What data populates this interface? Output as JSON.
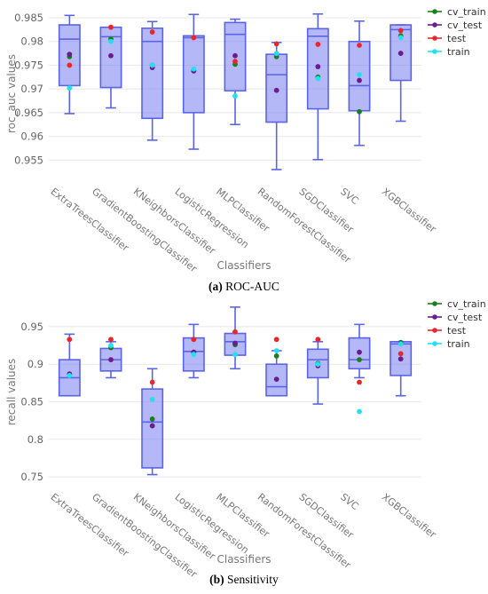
{
  "chart_data": [
    {
      "type": "box",
      "caption_label": "(a)",
      "caption_text": "ROC-AUC",
      "xlabel": "Classifiers",
      "ylabel": "roc_auc values",
      "ylim": [
        0.9515,
        0.9865
      ],
      "yticks": [
        0.955,
        0.96,
        0.965,
        0.97,
        0.975,
        0.98,
        0.985
      ],
      "ytick_labels": [
        "0.955",
        "0.96",
        "0.965",
        "0.97",
        "0.975",
        "0.98",
        "0.985"
      ],
      "grid": true,
      "legend_position": "top-right",
      "categories": [
        "ExtraTreesClassifier",
        "GradientBoostingClassifier",
        "KNeighborsClassifier",
        "LogisticRegression",
        "MLPClassifier",
        "RandomForestClassifier",
        "SGDClassifier",
        "SVC",
        "XGBClassifier"
      ],
      "boxes": [
        {
          "min": 0.9648,
          "q1": 0.9707,
          "median": 0.9805,
          "q3": 0.9835,
          "max": 0.9855
        },
        {
          "min": 0.966,
          "q1": 0.9703,
          "median": 0.981,
          "q3": 0.983,
          "max": 0.983
        },
        {
          "min": 0.9592,
          "q1": 0.9638,
          "median": 0.98,
          "q3": 0.9828,
          "max": 0.9842
        },
        {
          "min": 0.9573,
          "q1": 0.965,
          "median": 0.9808,
          "q3": 0.9812,
          "max": 0.9857
        },
        {
          "min": 0.9625,
          "q1": 0.9696,
          "median": 0.9815,
          "q3": 0.984,
          "max": 0.9847
        },
        {
          "min": 0.953,
          "q1": 0.963,
          "median": 0.973,
          "q3": 0.9773,
          "max": 0.9798
        },
        {
          "min": 0.9551,
          "q1": 0.9658,
          "median": 0.9811,
          "q3": 0.9827,
          "max": 0.9858
        },
        {
          "min": 0.9581,
          "q1": 0.9654,
          "median": 0.9707,
          "q3": 0.98,
          "max": 0.9843
        },
        {
          "min": 0.9632,
          "q1": 0.9718,
          "median": 0.9825,
          "q3": 0.9835,
          "max": 0.9835
        }
      ],
      "series": [
        {
          "name": "cv_train",
          "color": "#1a7f1a",
          "values": [
            0.9768,
            0.9805,
            0.975,
            0.9738,
            0.9752,
            0.9768,
            0.9725,
            0.9652,
            0.9812
          ]
        },
        {
          "name": "cv_test",
          "color": "#6b1a8f",
          "values": [
            0.9773,
            0.977,
            0.9745,
            0.9738,
            0.977,
            0.9697,
            0.9747,
            0.9718,
            0.9775
          ]
        },
        {
          "name": "test",
          "color": "#e8262b",
          "values": [
            0.975,
            0.983,
            0.982,
            0.9808,
            0.9758,
            0.9795,
            0.9794,
            0.9792,
            0.9823
          ]
        },
        {
          "name": "train",
          "color": "#22e0f0",
          "values": [
            0.9702,
            0.98,
            0.975,
            0.9742,
            0.9685,
            0.9775,
            0.9722,
            0.973,
            0.9808
          ]
        }
      ]
    },
    {
      "type": "box",
      "caption_label": "(b)",
      "caption_text": "Sensitivity",
      "xlabel": "Classifiers",
      "ylabel": "recall values",
      "ylim": [
        0.743,
        0.983
      ],
      "yticks": [
        0.75,
        0.8,
        0.85,
        0.9,
        0.95
      ],
      "ytick_labels": [
        "0.75",
        "0.8",
        "0.85",
        "0.9",
        "0.95"
      ],
      "grid": true,
      "legend_position": "top-right",
      "categories": [
        "ExtraTreesClassifier",
        "GradientBoostingClassifier",
        "KNeighborsClassifier",
        "LogisticRegression",
        "MLPClassifier",
        "RandomForestClassifier",
        "SGDClassifier",
        "SVC",
        "XGBClassifier"
      ],
      "boxes": [
        {
          "min": 0.858,
          "q1": 0.858,
          "median": 0.882,
          "q3": 0.906,
          "max": 0.94
        },
        {
          "min": 0.882,
          "q1": 0.891,
          "median": 0.906,
          "q3": 0.921,
          "max": 0.93
        },
        {
          "min": 0.753,
          "q1": 0.762,
          "median": 0.823,
          "q3": 0.867,
          "max": 0.894
        },
        {
          "min": 0.882,
          "q1": 0.891,
          "median": 0.917,
          "q3": 0.935,
          "max": 0.953
        },
        {
          "min": 0.894,
          "q1": 0.912,
          "median": 0.93,
          "q3": 0.941,
          "max": 0.976
        },
        {
          "min": 0.858,
          "q1": 0.858,
          "median": 0.87,
          "q3": 0.9,
          "max": 0.918
        },
        {
          "min": 0.847,
          "q1": 0.882,
          "median": 0.906,
          "q3": 0.92,
          "max": 0.93
        },
        {
          "min": 0.882,
          "q1": 0.894,
          "median": 0.906,
          "q3": 0.935,
          "max": 0.953
        },
        {
          "min": 0.858,
          "q1": 0.885,
          "median": 0.927,
          "q3": 0.93,
          "max": 0.93
        }
      ],
      "series": [
        {
          "name": "cv_train",
          "color": "#1a7f1a",
          "values": [
            0.886,
            0.922,
            0.827,
            0.916,
            0.926,
            0.911,
            0.901,
            0.906,
            0.929
          ]
        },
        {
          "name": "cv_test",
          "color": "#6b1a8f",
          "values": [
            0.887,
            0.906,
            0.818,
            0.916,
            0.928,
            0.88,
            0.898,
            0.916,
            0.907
          ]
        },
        {
          "name": "test",
          "color": "#e8262b",
          "values": [
            0.933,
            0.933,
            0.876,
            0.933,
            0.943,
            0.933,
            0.933,
            0.876,
            0.914
          ]
        },
        {
          "name": "train",
          "color": "#22e0f0",
          "values": [
            0.885,
            0.925,
            0.853,
            0.913,
            0.913,
            0.918,
            0.9,
            0.837,
            0.927
          ]
        }
      ]
    }
  ]
}
